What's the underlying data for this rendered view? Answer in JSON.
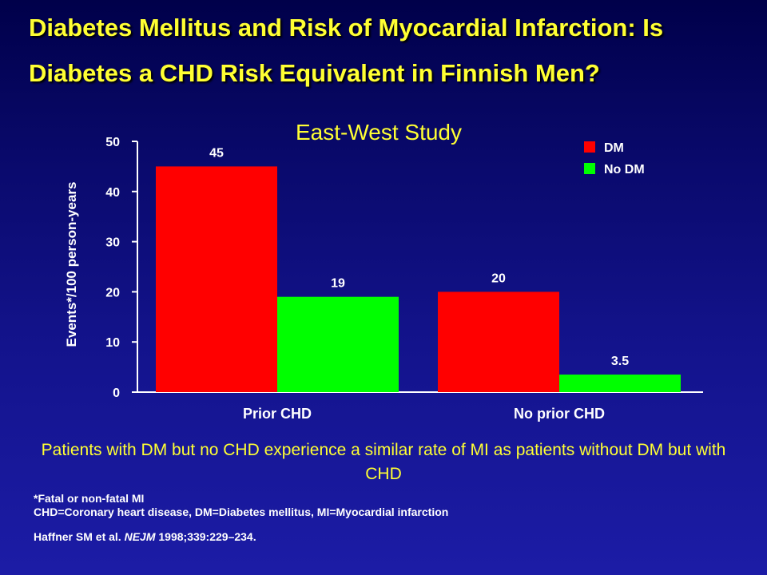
{
  "slide": {
    "title": "Diabetes Mellitus and Risk of Myocardial Infarction: Is Diabetes a CHD Risk Equivalent in Finnish Men?",
    "subtitle": "East-West Study",
    "summary": "Patients with DM but no CHD experience a similar rate of MI as patients without DM but with CHD",
    "footnote_1": "*Fatal or non-fatal MI",
    "footnote_2": "CHD=Coronary heart disease, DM=Diabetes mellitus, MI=Myocardial infarction",
    "reference_authors": "Haffner SM et al.",
    "reference_journal": "NEJM",
    "reference_citation": "1998;339:229–234."
  },
  "chart_data": {
    "type": "bar",
    "categories": [
      "Prior CHD",
      "No prior CHD"
    ],
    "series": [
      {
        "name": "DM",
        "values": [
          45,
          20
        ],
        "labels": [
          "45",
          "20"
        ],
        "color": "#ff0000"
      },
      {
        "name": "No DM",
        "values": [
          19,
          3.5
        ],
        "labels": [
          "19",
          "3.5"
        ],
        "color": "#00ff00"
      }
    ],
    "ylabel": "Events*/100 person-years",
    "yticks": [
      0,
      10,
      20,
      30,
      40,
      50
    ],
    "ylim": [
      0,
      50
    ],
    "legend": "top-right",
    "grid": false
  }
}
